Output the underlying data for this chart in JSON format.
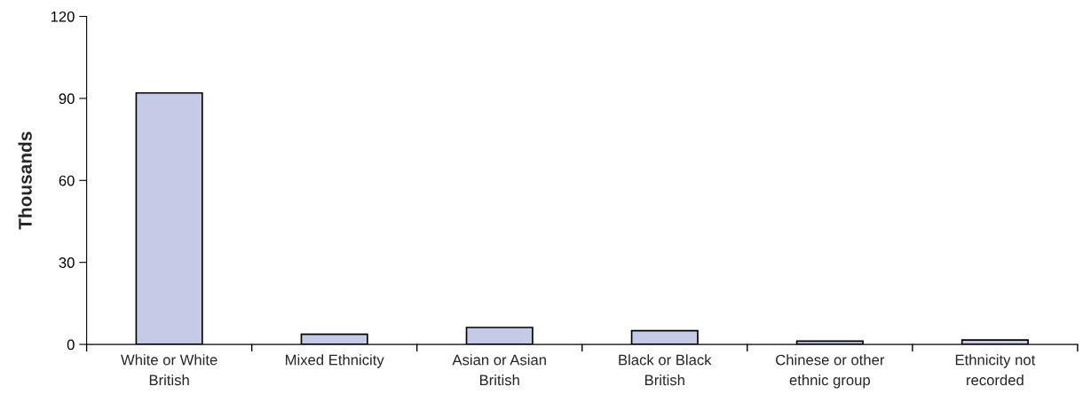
{
  "chart_data": {
    "type": "bar",
    "ylabel": "Thousands",
    "categories": [
      "White or White British",
      "Mixed Ethnicity",
      "Asian or Asian British",
      "Black or Black British",
      "Chinese or other ethnic group",
      "Ethnicity not recorded"
    ],
    "values": [
      92,
      3.7,
      6.2,
      5.0,
      1.2,
      1.6
    ],
    "color": "#c5cae6",
    "ylim": [
      0,
      120
    ],
    "yticks": [
      0,
      30,
      60,
      90,
      120
    ],
    "grid": false
  }
}
